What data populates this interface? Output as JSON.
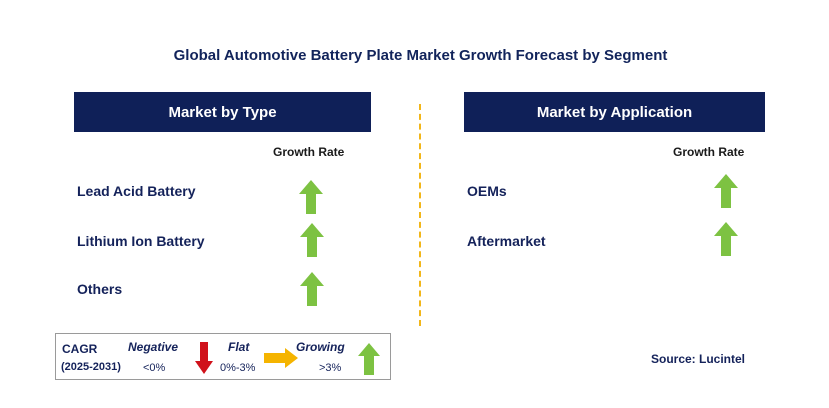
{
  "title": "Global Automotive Battery Plate Market Growth Forecast by Segment",
  "panels": [
    {
      "header": "Market by Type",
      "column_header": "Growth Rate",
      "rows": [
        {
          "label": "Lead Acid Battery",
          "growth": "growing"
        },
        {
          "label": "Lithium Ion Battery",
          "growth": "growing"
        },
        {
          "label": "Others",
          "growth": "growing"
        }
      ]
    },
    {
      "header": "Market by Application",
      "column_header": "Growth Rate",
      "rows": [
        {
          "label": "OEMs",
          "growth": "growing"
        },
        {
          "label": "Aftermarket",
          "growth": "growing"
        }
      ]
    }
  ],
  "legend": {
    "cagr": "CAGR",
    "period": "(2025-2031)",
    "negative": {
      "label": "Negative",
      "range": "<0%"
    },
    "flat": {
      "label": "Flat",
      "range": "0%-3%"
    },
    "growing": {
      "label": "Growing",
      "range": ">3%"
    }
  },
  "source": "Source: Lucintel",
  "colors": {
    "header_bg": "#0f2058",
    "growing_arrow": "#7dc242",
    "negative_arrow": "#d0121b",
    "flat_arrow": "#f5b400",
    "divider": "#f2b619"
  }
}
